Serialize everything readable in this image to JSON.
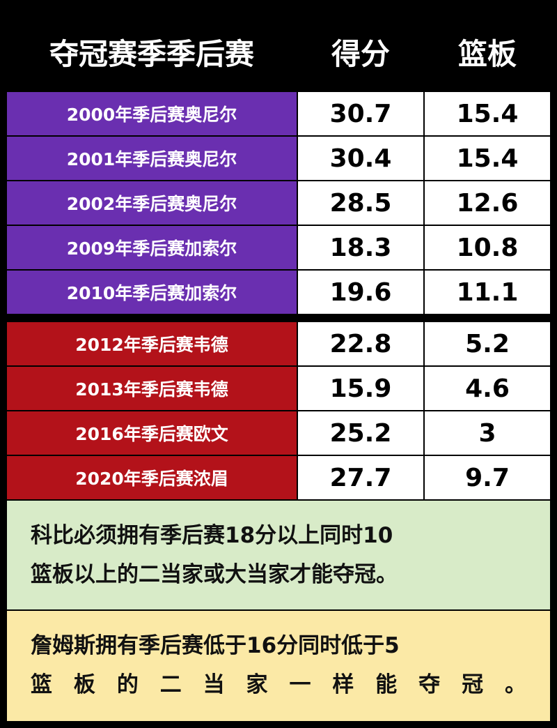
{
  "table": {
    "header": [
      "夺冠赛季季后赛",
      "得分",
      "篮板"
    ],
    "groups": [
      {
        "color": "#6a2fb0",
        "rows": [
          [
            "2000年季后赛奥尼尔",
            "30.7",
            "15.4"
          ],
          [
            "2001年季后赛奥尼尔",
            "30.4",
            "15.4"
          ],
          [
            "2002年季后赛奥尼尔",
            "28.5",
            "12.6"
          ],
          [
            "2009年季后赛加索尔",
            "18.3",
            "10.8"
          ],
          [
            "2010年季后赛加索尔",
            "19.6",
            "11.1"
          ]
        ]
      },
      {
        "color": "#b3121a",
        "rows": [
          [
            "2012年季后赛韦德",
            "22.8",
            "5.2"
          ],
          [
            "2013年季后赛韦德",
            "15.9",
            "4.6"
          ],
          [
            "2016年季后赛欧文",
            "25.2",
            "3"
          ],
          [
            "2020年季后赛浓眉",
            "27.7",
            "9.7"
          ]
        ]
      }
    ]
  },
  "notes": [
    {
      "color": "#d8ebc8",
      "lines": [
        "科比必须拥有季后赛18分以上同时10",
        "篮板以上的二当家或大当家才能夺冠。"
      ]
    },
    {
      "color": "#fbe9a6",
      "lines": [
        "詹姆斯拥有季后赛低于16分同时低于5",
        "篮板的二当家一样能夺冠。"
      ]
    }
  ]
}
